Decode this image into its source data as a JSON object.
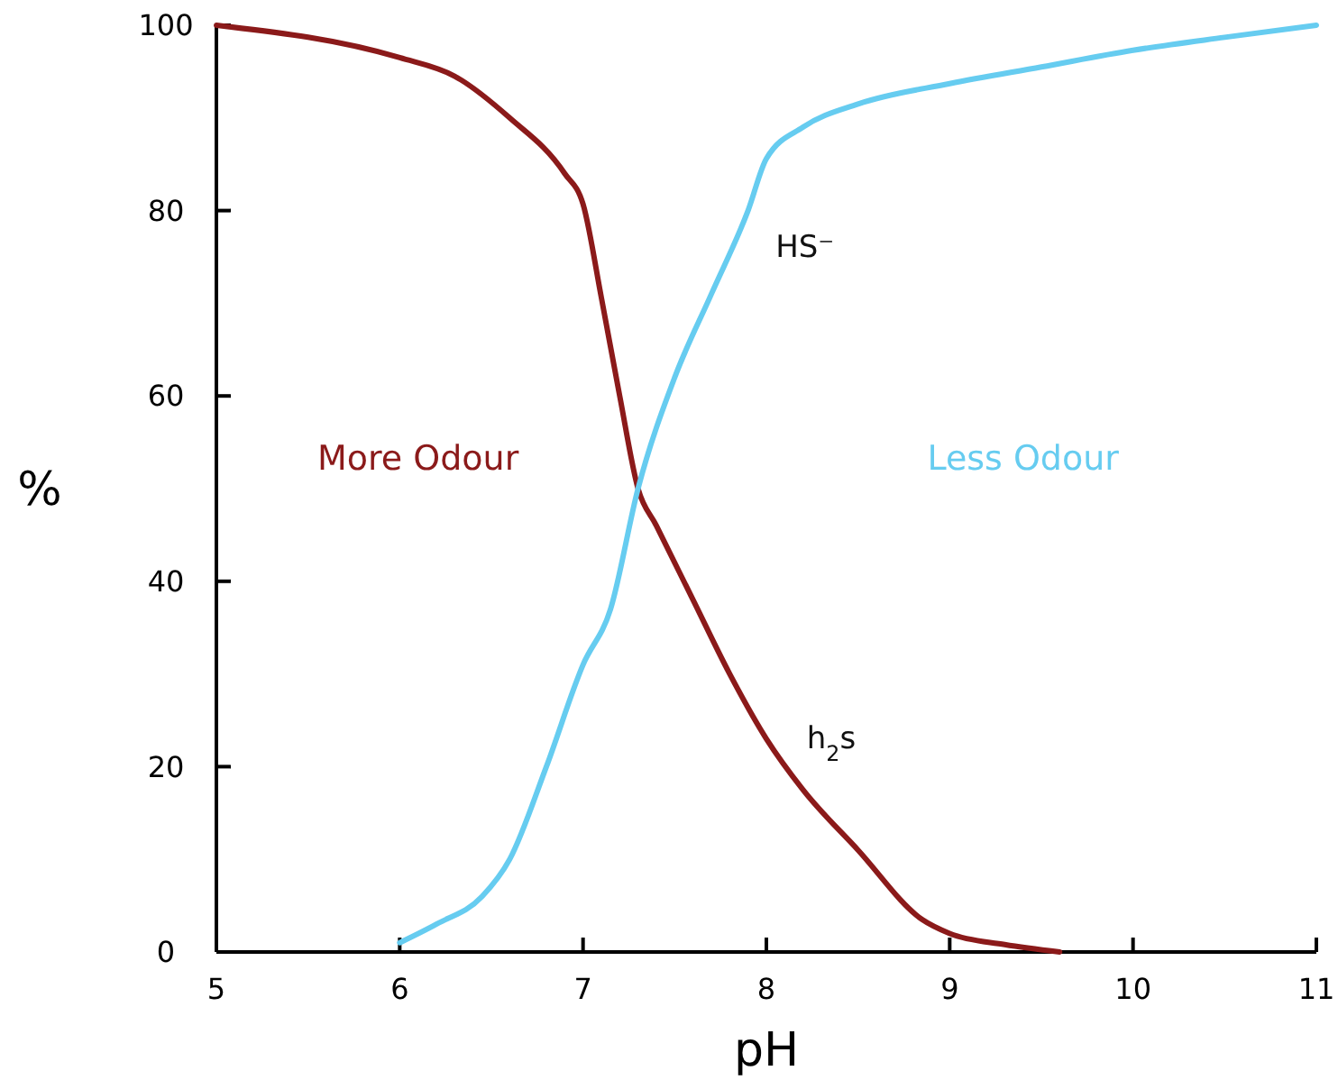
{
  "chart_data": {
    "type": "line",
    "xlabel": "pH",
    "ylabel": "%",
    "xlim": [
      5,
      11
    ],
    "ylim": [
      0,
      100
    ],
    "xticks": [
      5,
      6,
      7,
      8,
      9,
      10,
      11
    ],
    "yticks": [
      0,
      20,
      40,
      60,
      80,
      100
    ],
    "grid": false,
    "marker": "none",
    "line_style": "solid",
    "annotations": [
      "More Odour",
      "Less Odour"
    ],
    "series": [
      {
        "name": "h$_{2}$s",
        "color": "#8b1a1a",
        "x": [
          5,
          6,
          6.3,
          6.6,
          6.9,
          7,
          7.1,
          7.2,
          7.3,
          7.4,
          7.6,
          7.8,
          8,
          8.2,
          8.5,
          8.85,
          9,
          9.3,
          9.6
        ],
        "values": [
          100,
          96.5,
          94.5,
          90,
          84,
          80.7,
          70.6,
          60,
          50,
          46,
          38,
          30,
          23,
          17.5,
          11,
          3.5,
          2,
          0.8,
          0
        ]
      },
      {
        "name": "HS⁻",
        "color": "#66ccf0",
        "x": [
          6,
          6.2,
          6.45,
          6.6,
          6.8,
          7,
          7.15,
          7.3,
          7.5,
          7.7,
          7.9,
          8,
          8.2,
          8.5,
          9,
          9.5,
          10,
          10.5,
          11
        ],
        "values": [
          1,
          3,
          6,
          10,
          20,
          31,
          37,
          50,
          62,
          71,
          80,
          85.6,
          89,
          91.5,
          93.7,
          95.5,
          97.3,
          98.7,
          100
        ]
      }
    ]
  }
}
